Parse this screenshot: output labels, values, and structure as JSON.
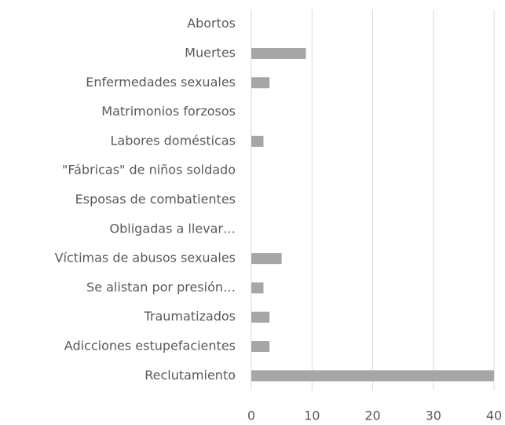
{
  "chart_data": {
    "type": "hbar",
    "categories": [
      "Abortos",
      "Muertes",
      "Enfermedades sexuales",
      "Matrimonios forzosos",
      "Labores domésticas",
      "\"Fábricas\" de niños soldado",
      "Esposas de combatientes",
      "Obligadas a llevar…",
      "Víctimas de abusos sexuales",
      "Se alistan por presión…",
      "Traumatizados",
      "Adicciones estupefacientes",
      "Reclutamiento"
    ],
    "values": [
      0,
      9,
      3,
      0,
      2,
      0,
      0,
      0,
      5,
      2,
      3,
      3,
      40
    ],
    "color": "#a6a6a6",
    "xlim": [
      0,
      40
    ],
    "xticks": [
      0,
      10,
      20,
      30,
      40
    ],
    "grid": true
  }
}
